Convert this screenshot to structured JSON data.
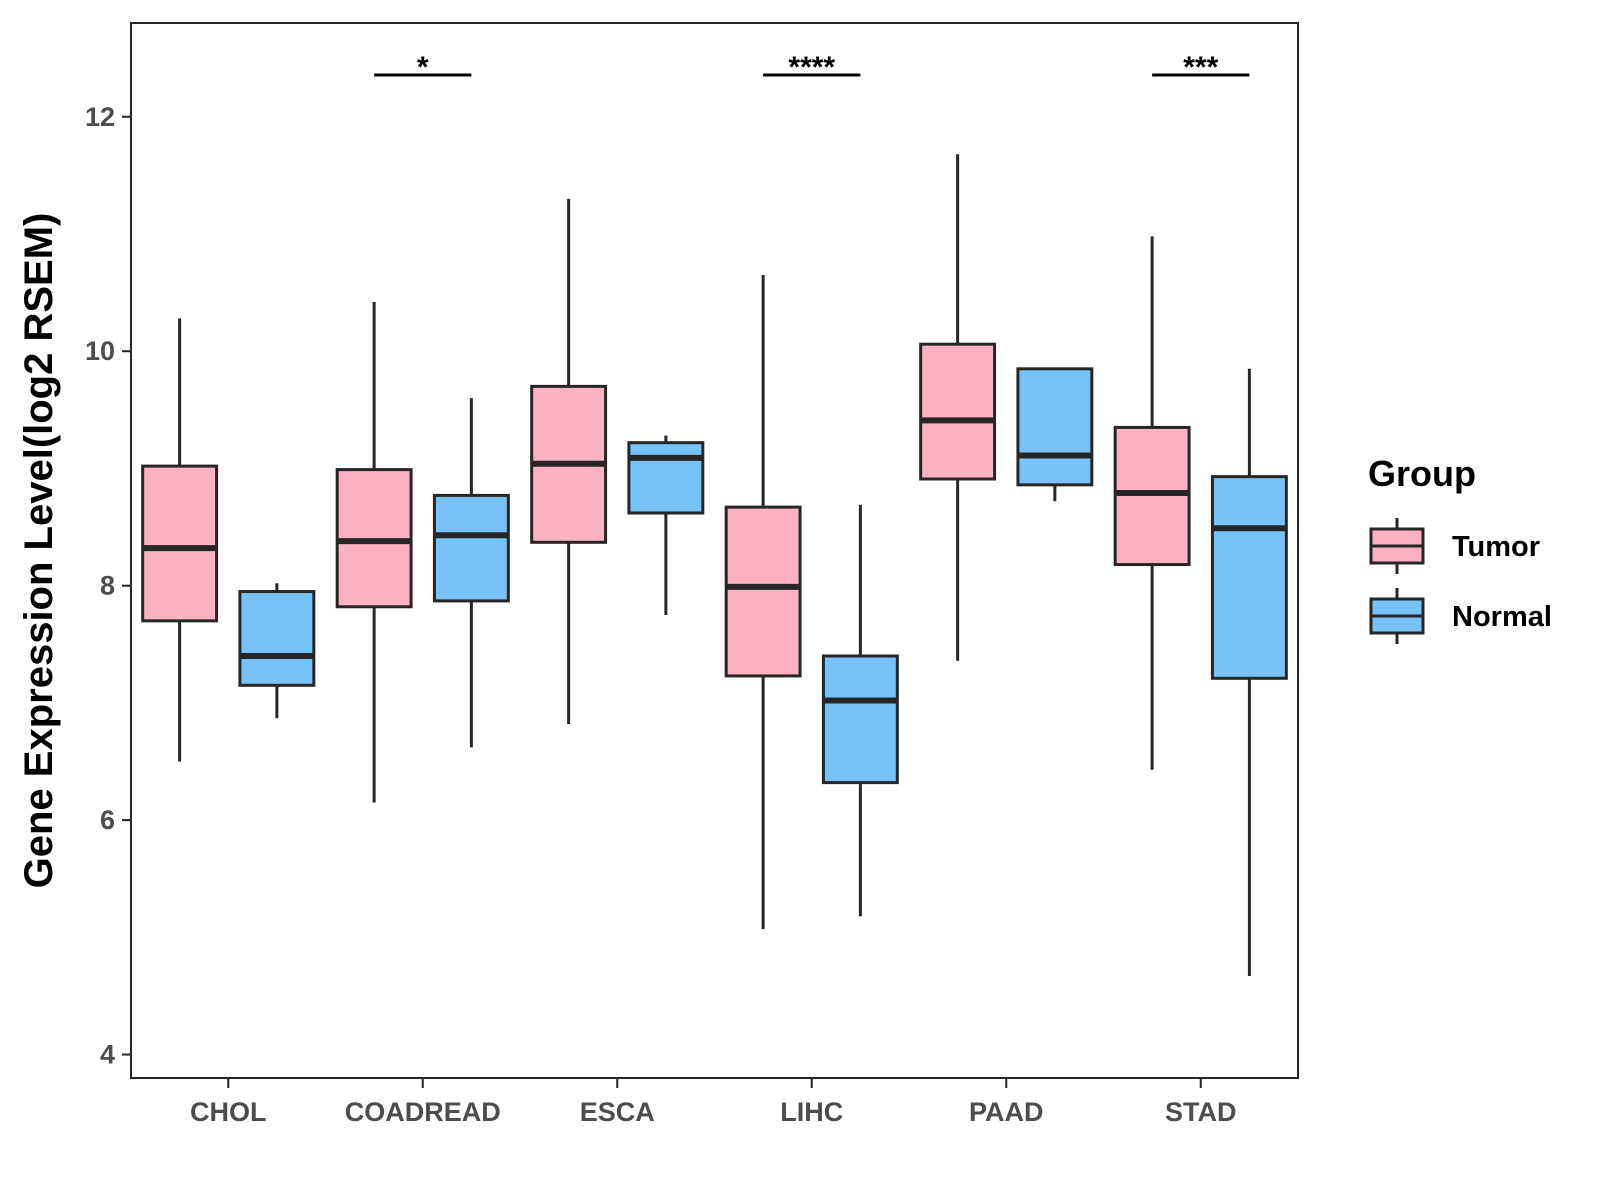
{
  "chart_data": {
    "type": "boxplot",
    "title": "",
    "xlabel": "",
    "ylabel": "Gene Expression Level(log2 RSEM)",
    "ylim": [
      3.8,
      12.8
    ],
    "yticks": [
      4,
      6,
      8,
      10,
      12
    ],
    "categories": [
      "CHOL",
      "COADREAD",
      "ESCA",
      "LIHC",
      "PAAD",
      "STAD"
    ],
    "legend": {
      "title": "Group",
      "position": "right",
      "entries": [
        "Tumor",
        "Normal"
      ]
    },
    "colors": {
      "Tumor": "#fbb1c2",
      "Normal": "#77c2f8",
      "outline": "#262626"
    },
    "series": [
      {
        "name": "Tumor",
        "boxes": [
          {
            "category": "CHOL",
            "min": 6.5,
            "q1": 7.7,
            "median": 8.32,
            "q3": 9.02,
            "max": 10.28
          },
          {
            "category": "COADREAD",
            "min": 6.15,
            "q1": 7.82,
            "median": 8.38,
            "q3": 8.99,
            "max": 10.42
          },
          {
            "category": "ESCA",
            "min": 6.82,
            "q1": 8.37,
            "median": 9.04,
            "q3": 9.7,
            "max": 11.3
          },
          {
            "category": "LIHC",
            "min": 5.07,
            "q1": 7.23,
            "median": 7.99,
            "q3": 8.67,
            "max": 10.65
          },
          {
            "category": "PAAD",
            "min": 7.36,
            "q1": 8.91,
            "median": 9.41,
            "q3": 10.06,
            "max": 11.68
          },
          {
            "category": "STAD",
            "min": 6.43,
            "q1": 8.18,
            "median": 8.79,
            "q3": 9.35,
            "max": 10.98
          }
        ]
      },
      {
        "name": "Normal",
        "boxes": [
          {
            "category": "CHOL",
            "min": 6.87,
            "q1": 7.15,
            "median": 7.4,
            "q3": 7.95,
            "max": 8.02
          },
          {
            "category": "COADREAD",
            "min": 6.62,
            "q1": 7.87,
            "median": 8.43,
            "q3": 8.77,
            "max": 9.6
          },
          {
            "category": "ESCA",
            "min": 7.75,
            "q1": 8.62,
            "median": 9.09,
            "q3": 9.22,
            "max": 9.28
          },
          {
            "category": "LIHC",
            "min": 5.18,
            "q1": 6.32,
            "median": 7.02,
            "q3": 7.4,
            "max": 8.69
          },
          {
            "category": "PAAD",
            "min": 8.72,
            "q1": 8.86,
            "median": 9.11,
            "q3": 9.85,
            "max": 9.85
          },
          {
            "category": "STAD",
            "min": 4.67,
            "q1": 7.21,
            "median": 8.49,
            "q3": 8.93,
            "max": 9.85
          }
        ]
      }
    ],
    "annotations": [
      {
        "category": "COADREAD",
        "label": "*"
      },
      {
        "category": "LIHC",
        "label": "****"
      },
      {
        "category": "STAD",
        "label": "***"
      }
    ]
  }
}
